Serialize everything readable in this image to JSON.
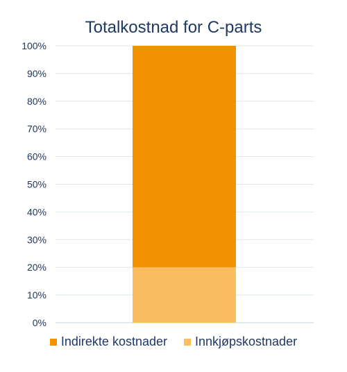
{
  "chart_data": {
    "type": "bar",
    "stacked": true,
    "title": "Totalkostnad for C-parts",
    "categories": [
      ""
    ],
    "series": [
      {
        "name": "Innkjøpskostnader",
        "values": [
          20
        ],
        "color": "#fabd5f"
      },
      {
        "name": "Indirekte kostnader",
        "values": [
          80
        ],
        "color": "#f39200"
      }
    ],
    "ylim": [
      0,
      100
    ],
    "yticks": [
      "0%",
      "10%",
      "20%",
      "30%",
      "40%",
      "50%",
      "60%",
      "70%",
      "80%",
      "90%",
      "100%"
    ],
    "grid": true,
    "legend_position": "bottom",
    "legend_order": [
      "Indirekte kostnader",
      "Innkjøpskostnader"
    ]
  }
}
